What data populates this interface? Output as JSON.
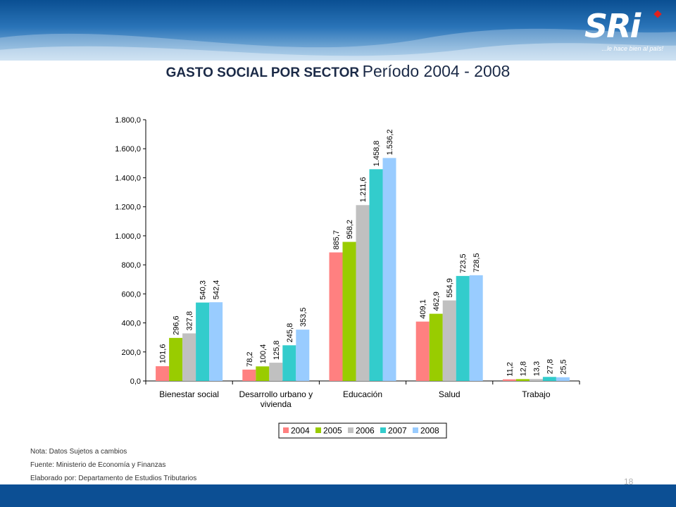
{
  "header": {
    "logo_text": "SRi",
    "tagline": "...le hace bien al país!"
  },
  "title": {
    "bold": "GASTO SOCIAL POR SECTOR",
    "rest": "Período 2004 - 2008"
  },
  "chart_data": {
    "type": "bar",
    "categories": [
      "Bienestar social",
      "Desarrollo urbano y vivienda",
      "Educación",
      "Salud",
      "Trabajo"
    ],
    "category_lines": [
      [
        "Bienestar social"
      ],
      [
        "Desarrollo urbano y",
        "vivienda"
      ],
      [
        "Educación"
      ],
      [
        "Salud"
      ],
      [
        "Trabajo"
      ]
    ],
    "series": [
      {
        "name": "2004",
        "color": "#ff8080",
        "values": [
          101.6,
          78.2,
          885.7,
          409.1,
          11.2
        ],
        "labels": [
          "101,6",
          "78,2",
          "885,7",
          "409,1",
          "11,2"
        ]
      },
      {
        "name": "2005",
        "color": "#99cc00",
        "values": [
          296.6,
          100.4,
          958.2,
          462.9,
          12.8
        ],
        "labels": [
          "296,6",
          "100,4",
          "958,2",
          "462,9",
          "12,8"
        ]
      },
      {
        "name": "2006",
        "color": "#c0c0c0",
        "values": [
          327.8,
          125.8,
          1211.6,
          554.9,
          13.3
        ],
        "labels": [
          "327,8",
          "125,8",
          "1.211,6",
          "554,9",
          "13,3"
        ]
      },
      {
        "name": "2007",
        "color": "#33cccc",
        "values": [
          540.3,
          245.8,
          1458.8,
          723.5,
          27.8
        ],
        "labels": [
          "540,3",
          "245,8",
          "1.458,8",
          "723,5",
          "27,8"
        ]
      },
      {
        "name": "2008",
        "color": "#99ccff",
        "values": [
          542.4,
          353.5,
          1536.2,
          728.5,
          25.5
        ],
        "labels": [
          "542,4",
          "353,5",
          "1.536,2",
          "728,5",
          "25,5"
        ]
      }
    ],
    "ylim": [
      0,
      1800
    ],
    "yticks": [
      0,
      200,
      400,
      600,
      800,
      1000,
      1200,
      1400,
      1600,
      1800
    ],
    "ytick_labels": [
      "0,0",
      "200,0",
      "400,0",
      "600,0",
      "800,0",
      "1.000,0",
      "1.200,0",
      "1.400,0",
      "1.600,0",
      "1.800,0"
    ],
    "legend_position": "bottom",
    "grid": false,
    "xlabel": "",
    "ylabel": ""
  },
  "notes": {
    "nota": "Nota: Datos Sujetos a cambios",
    "fuente": "Fuente: Ministerio de Economía y Finanzas",
    "elaborado": "Elaborado por: Departamento de Estudios Tributarios"
  },
  "page_number": "18"
}
